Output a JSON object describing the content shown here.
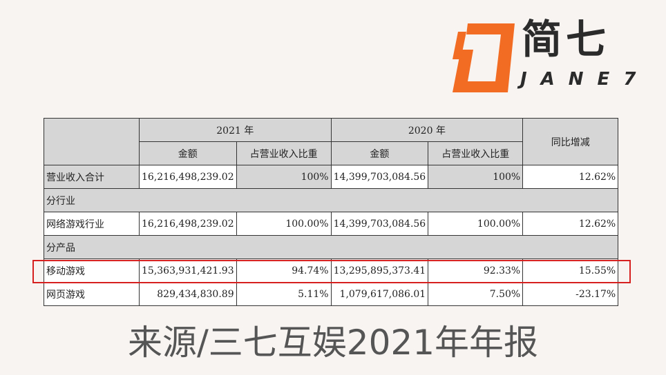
{
  "logo": {
    "name_cn": "简七",
    "name_en": "JANE7",
    "accent_color": "#f36c24",
    "icon": "jane7-logo-mark"
  },
  "table": {
    "header": {
      "year_2021": "2021 年",
      "year_2020": "2020 年",
      "yoy": "同比增减",
      "amount": "金额",
      "share": "占营业收入比重"
    },
    "total": {
      "label": "营业收入合计",
      "amt_2021": "16,216,498,239.02",
      "pct_2021": "100%",
      "amt_2020": "14,399,703,084.56",
      "pct_2020": "100%",
      "yoy": "12.62%"
    },
    "section_industry": "分行业",
    "industry": {
      "label": "网络游戏行业",
      "amt_2021": "16,216,498,239.02",
      "pct_2021": "100.00%",
      "amt_2020": "14,399,703,084.56",
      "pct_2020": "100.00%",
      "yoy": "12.62%"
    },
    "section_product": "分产品",
    "mobile": {
      "label": "移动游戏",
      "amt_2021": "15,363,931,421.93",
      "pct_2021": "94.74%",
      "amt_2020": "13,295,895,373.41",
      "pct_2020": "92.33%",
      "yoy": "15.55%"
    },
    "web": {
      "label": "网页游戏",
      "amt_2021": "829,434,830.89",
      "pct_2021": "5.11%",
      "amt_2020": "1,079,617,086.01",
      "pct_2020": "7.50%",
      "yoy": "-23.17%"
    }
  },
  "highlight_color": "#d62020",
  "caption": "来源/三七互娱2021年年报"
}
